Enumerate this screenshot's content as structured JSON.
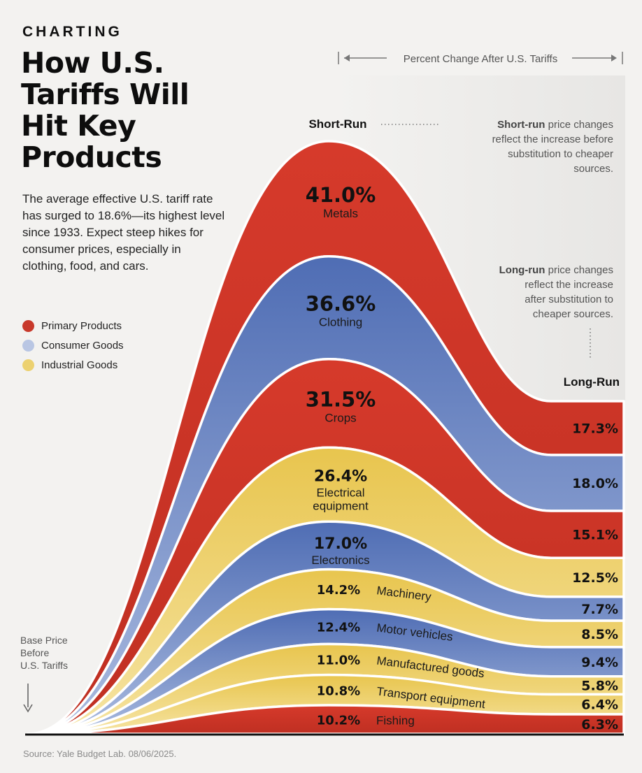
{
  "eyebrow": "CHARTING",
  "title_lines": [
    "How U.S.",
    "Tariffs Will",
    "Hit Key",
    "Products"
  ],
  "intro": "The average effective U.S. tariff rate has surged to 18.6%—its highest level since 1933. Expect steep hikes for consumer prices, especially in clothing, food, and cars.",
  "legend": [
    {
      "label": "Primary Products",
      "color": "#c8392b"
    },
    {
      "label": "Consumer Goods",
      "color": "#b9c6e3"
    },
    {
      "label": "Industrial Goods",
      "color": "#ecd170"
    }
  ],
  "source": "Source: Yale Budget Lab. 08/06/2025.",
  "chart_data": {
    "type": "area",
    "axis_label": "Percent Change After U.S. Tariffs",
    "short_run_label": "Short-Run",
    "long_run_label": "Long-Run",
    "short_run_note_bold": "Short-run",
    "short_run_note": " price changes reflect the increase before substitution to cheaper sources.",
    "long_run_note_bold": "Long-run",
    "long_run_note": " price changes reflect the increase after substitution to cheaper sources.",
    "base_label_lines": [
      "Base Price",
      "Before",
      "U.S. Tariffs"
    ],
    "series": [
      {
        "name": "Metals",
        "category": "Primary Products",
        "short_run": 41.0,
        "short_label": "41.0%",
        "long_run": 17.3,
        "long_label": "17.3%"
      },
      {
        "name": "Clothing",
        "category": "Consumer Goods",
        "short_run": 36.6,
        "short_label": "36.6%",
        "long_run": 18.0,
        "long_label": "18.0%"
      },
      {
        "name": "Crops",
        "category": "Primary Products",
        "short_run": 31.5,
        "short_label": "31.5%",
        "long_run": 15.1,
        "long_label": "15.1%"
      },
      {
        "name": "Electrical equipment",
        "name_lines": [
          "Electrical",
          "equipment"
        ],
        "category": "Industrial Goods",
        "short_run": 26.4,
        "short_label": "26.4%",
        "long_run": 12.5,
        "long_label": "12.5%"
      },
      {
        "name": "Electronics",
        "category": "Consumer Goods",
        "short_run": 17.0,
        "short_label": "17.0%",
        "long_run": 7.7,
        "long_label": "7.7%"
      },
      {
        "name": "Machinery",
        "category": "Industrial Goods",
        "short_run": 14.2,
        "short_label": "14.2%",
        "long_run": 8.5,
        "long_label": "8.5%"
      },
      {
        "name": "Motor vehicles",
        "category": "Consumer Goods",
        "short_run": 12.4,
        "short_label": "12.4%",
        "long_run": 9.4,
        "long_label": "9.4%"
      },
      {
        "name": "Manufactured goods",
        "category": "Industrial Goods",
        "short_run": 11.0,
        "short_label": "11.0%",
        "long_run": 5.8,
        "long_label": "5.8%"
      },
      {
        "name": "Transport equipment",
        "category": "Industrial Goods",
        "short_run": 10.8,
        "short_label": "10.8%",
        "long_run": 6.4,
        "long_label": "6.4%"
      },
      {
        "name": "Fishing",
        "category": "Primary Products",
        "short_run": 10.2,
        "short_label": "10.2%",
        "long_run": 6.3,
        "long_label": "6.3%"
      }
    ]
  }
}
